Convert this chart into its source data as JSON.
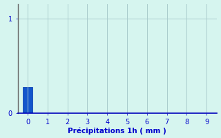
{
  "bar_x": [
    0
  ],
  "bar_height": [
    0.28
  ],
  "bar_width": 0.5,
  "bar_color": "#1155cc",
  "bar_edgecolor": "#0033aa",
  "background_color": "#d6f5ef",
  "grid_color": "#aacccc",
  "xlabel": "Précipitations 1h ( mm )",
  "xlabel_color": "#0000cc",
  "xlabel_fontsize": 7.5,
  "tick_color": "#0000cc",
  "tick_fontsize": 7,
  "ytick_values": [
    0,
    1
  ],
  "xlim": [
    -0.5,
    9.5
  ],
  "ylim": [
    0,
    1.15
  ],
  "xtick_values": [
    0,
    1,
    2,
    3,
    4,
    5,
    6,
    7,
    8,
    9
  ],
  "left_spine_color": "#666666",
  "bottom_spine_color": "#0000bb"
}
